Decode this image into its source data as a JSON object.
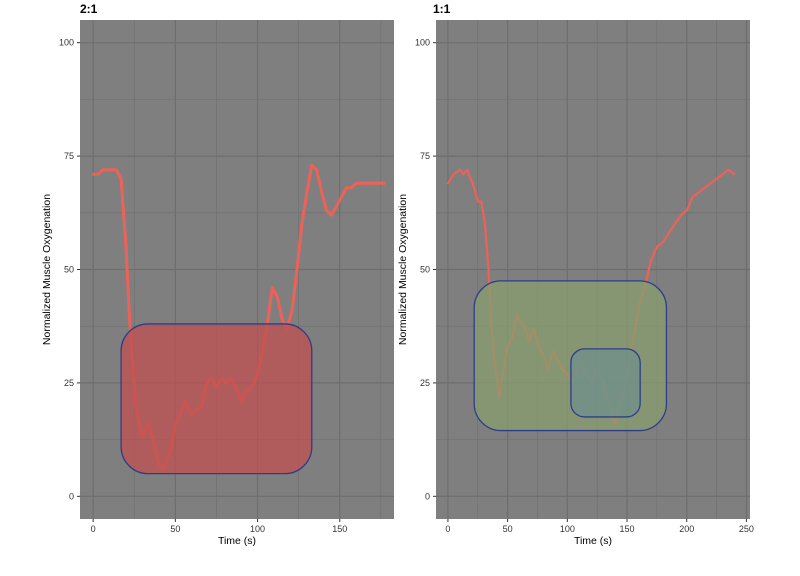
{
  "chart_data": [
    {
      "type": "line",
      "title": "2:1",
      "xlabel": "Time (s)",
      "ylabel": "Normalized Muscle Oxygenation",
      "xlim": [
        -8,
        183
      ],
      "ylim": [
        -5,
        105
      ],
      "xticks": [
        0,
        50,
        100,
        150
      ],
      "yticks": [
        0,
        25,
        50,
        75,
        100
      ],
      "grid": true,
      "colors": {
        "background": "#7f7f7f",
        "grid": "#6e6e6e",
        "line": "#f26157"
      },
      "x": [
        0,
        3,
        6,
        10,
        14,
        17,
        18,
        20,
        22,
        24,
        26,
        28,
        30,
        32,
        34,
        36,
        38,
        40,
        43,
        46,
        48,
        50,
        53,
        56,
        60,
        63,
        66,
        69,
        72,
        75,
        78,
        81,
        84,
        87,
        90,
        93,
        96,
        98,
        100,
        103,
        106,
        109,
        112,
        115,
        118,
        121,
        124,
        127,
        130,
        133,
        136,
        139,
        142,
        145,
        148,
        151,
        154,
        157,
        160,
        163,
        166,
        169,
        172,
        175,
        177
      ],
      "y": [
        71,
        71,
        72,
        72,
        72,
        70,
        65,
        55,
        40,
        30,
        20,
        16,
        13,
        15,
        16,
        13,
        10,
        7,
        6,
        9,
        12,
        16,
        18,
        21,
        18,
        19,
        20,
        25,
        26,
        24,
        26,
        25,
        26,
        24,
        21,
        23,
        24,
        25,
        27,
        32,
        38,
        46,
        44,
        39,
        37,
        41,
        50,
        60,
        67,
        73,
        72,
        67,
        63,
        62,
        64,
        66,
        68,
        68,
        69,
        69,
        69,
        69,
        69,
        69,
        69
      ],
      "box": {
        "x": [
          17,
          133
        ],
        "y": [
          5,
          38
        ],
        "fill": "#c05050",
        "stroke": "#2d3d8a"
      }
    },
    {
      "type": "line",
      "title": "1:1",
      "xlabel": "Time (s)",
      "ylabel": "Normalized Muscle Oxygenation",
      "xlim": [
        -10,
        253
      ],
      "ylim": [
        -5,
        105
      ],
      "xticks": [
        0,
        50,
        100,
        150,
        200,
        250
      ],
      "yticks": [
        0,
        25,
        50,
        75,
        100
      ],
      "grid": true,
      "colors": {
        "background": "#7f7f7f",
        "grid": "#6e6e6e",
        "line": "#f26157"
      },
      "x": [
        0,
        5,
        10,
        13,
        16,
        19,
        22,
        25,
        28,
        31,
        34,
        37,
        40,
        43,
        46,
        50,
        54,
        58,
        62,
        65,
        68,
        72,
        76,
        80,
        84,
        88,
        92,
        96,
        100,
        104,
        108,
        112,
        116,
        120,
        124,
        128,
        132,
        136,
        140,
        144,
        148,
        152,
        156,
        160,
        165,
        170,
        175,
        180,
        185,
        190,
        195,
        200,
        205,
        210,
        215,
        220,
        225,
        230,
        235,
        240
      ],
      "y": [
        69,
        71,
        72,
        71,
        72,
        70,
        68,
        65,
        65,
        60,
        50,
        35,
        28,
        22,
        27,
        33,
        35,
        40,
        38,
        37,
        34,
        37,
        33,
        31,
        28,
        32,
        30,
        28,
        27,
        25,
        28,
        29,
        27,
        25,
        28,
        27,
        23,
        19,
        16,
        20,
        24,
        30,
        36,
        42,
        46,
        52,
        55,
        56,
        58,
        60,
        62,
        63,
        66,
        67,
        68,
        69,
        70,
        71,
        72,
        71
      ],
      "boxes": [
        {
          "x": [
            22,
            183
          ],
          "y": [
            14.5,
            47.5
          ],
          "fill": "#8a9d6e",
          "stroke": "#2d3d8a"
        },
        {
          "x": [
            103,
            161
          ],
          "y": [
            17.5,
            32.5
          ],
          "fill": "#6f8f8c",
          "stroke": "#2d3d8a"
        }
      ]
    }
  ]
}
